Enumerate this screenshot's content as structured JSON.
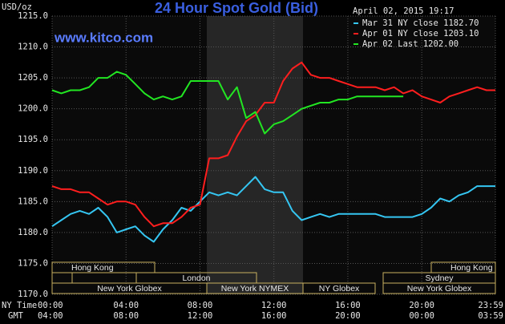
{
  "chart_data": {
    "type": "line",
    "title": "24 Hour Spot Gold (Bid)",
    "subtitle": "www.kitco.com",
    "y_label": "USD/oz",
    "timestamp": "April 02, 2015 19:17",
    "x_label": "NY Time",
    "x2_label": "GMT",
    "x": [
      0,
      0.5,
      1,
      1.5,
      2,
      2.5,
      3,
      3.5,
      4,
      4.5,
      5,
      5.5,
      6,
      6.5,
      7,
      7.5,
      8,
      8.5,
      9,
      9.5,
      10,
      10.5,
      11,
      11.5,
      12,
      12.5,
      13,
      13.5,
      14,
      14.5,
      15,
      15.5,
      16,
      16.5,
      17,
      17.5,
      18,
      18.5,
      19,
      19.5,
      20,
      20.5,
      21,
      21.5,
      22,
      22.5,
      23,
      23.5,
      23.983
    ],
    "xlim": [
      0,
      23.983
    ],
    "xticks": [
      {
        "value": 0,
        "label": "00:00"
      },
      {
        "value": 4,
        "label": "04:00"
      },
      {
        "value": 8,
        "label": "08:00"
      },
      {
        "value": 12,
        "label": "12:00"
      },
      {
        "value": 16,
        "label": "16:00"
      },
      {
        "value": 20,
        "label": "20:00"
      },
      {
        "value": 23.983,
        "label": "23:59"
      }
    ],
    "x2ticks": [
      {
        "value": 0,
        "label": "04:00"
      },
      {
        "value": 4,
        "label": "08:00"
      },
      {
        "value": 8,
        "label": "12:00"
      },
      {
        "value": 12,
        "label": "16:00"
      },
      {
        "value": 16,
        "label": "20:00"
      },
      {
        "value": 20,
        "label": "00:00"
      },
      {
        "value": 23.983,
        "label": "03:59"
      }
    ],
    "ylim": [
      1170,
      1215
    ],
    "yticks": [
      {
        "value": 1170,
        "label": "1170.0"
      },
      {
        "value": 1175,
        "label": "1175.0"
      },
      {
        "value": 1180,
        "label": "1180.0"
      },
      {
        "value": 1185,
        "label": "1185.0"
      },
      {
        "value": 1190,
        "label": "1190.0"
      },
      {
        "value": 1195,
        "label": "1195.0"
      },
      {
        "value": 1200,
        "label": "1200.0"
      },
      {
        "value": 1205,
        "label": "1205.0"
      },
      {
        "value": 1210,
        "label": "1210.0"
      },
      {
        "value": 1215,
        "label": "1215.0"
      }
    ],
    "grid": true,
    "series": [
      {
        "name": "Mar 31 NY close 1182.70",
        "color": "#35c6f2",
        "values": [
          1181,
          1182,
          1183,
          1183.5,
          1183,
          1184,
          1182.5,
          1180,
          1180.5,
          1181,
          1179.5,
          1178.5,
          1180.5,
          1182,
          1184,
          1183.5,
          1185,
          1186.5,
          1186,
          1186.5,
          1186,
          1187.5,
          1189,
          1187,
          1186.5,
          1186.5,
          1183.5,
          1182,
          1182.5,
          1183,
          1182.5,
          1183,
          1183,
          1183,
          1183,
          1183,
          1182.5,
          1182.5,
          1182.5,
          1182.5,
          1183,
          1184,
          1185.5,
          1185,
          1186,
          1186.5,
          1187.5,
          1187.5,
          1187.5
        ]
      },
      {
        "name": "Apr 01 NY close 1203.10",
        "color": "#ff1e1e",
        "values": [
          1187.5,
          1187,
          1187,
          1186.5,
          1186.5,
          1185.5,
          1184.5,
          1185,
          1185,
          1184.5,
          1182.5,
          1181,
          1181.5,
          1181.5,
          1182.5,
          1184,
          1184.5,
          1192,
          1192,
          1192.5,
          1195.5,
          1198,
          1199,
          1201,
          1201,
          1204.5,
          1206.5,
          1207.5,
          1205.5,
          1205,
          1205,
          1204.5,
          1204,
          1203.5,
          1203.5,
          1203.5,
          1203,
          1203.5,
          1202.5,
          1203,
          1202,
          1201.5,
          1201,
          1202,
          1202.5,
          1203,
          1203.5,
          1203,
          1203
        ]
      },
      {
        "name": "Apr 02 Last 1202.00",
        "color": "#22e622",
        "values": [
          1203,
          1202.5,
          1203,
          1203,
          1203.5,
          1205,
          1205,
          1206,
          1205.5,
          1204,
          1202.5,
          1201.5,
          1202,
          1201.5,
          1202,
          1204.5,
          1204.5,
          1204.5,
          1204.5,
          1201.5,
          1203.5,
          1198.5,
          1199.5,
          1196,
          1197.5,
          1198,
          1199,
          1200,
          1200.5,
          1201,
          1201,
          1201.5,
          1201.5,
          1202,
          1202,
          1202,
          1202,
          1202,
          1202,
          null,
          null,
          null,
          null,
          null,
          null,
          null,
          null,
          null,
          null
        ]
      }
    ],
    "sessions": [
      "Hong Kong",
      "London",
      "New York Globex",
      "New York NYMEX",
      "NY Globex",
      "Hong Kong",
      "Sydney",
      "New York Globex"
    ]
  }
}
